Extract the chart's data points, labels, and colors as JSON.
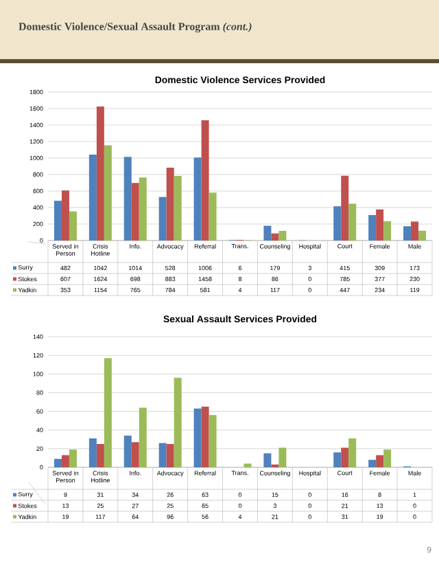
{
  "chart_data": [
    {
      "type": "bar",
      "title": "Domestic Violence Services Provided",
      "annotations": [
        "Domestic Violence/Sexual Assault Program *(cont.)*"
      ],
      "categories": [
        "Served in Person",
        "Crisis Hotline",
        "Info.",
        "Advocacy",
        "Referral",
        "Trans.",
        "Counseling",
        "Hospital",
        "Court",
        "Female",
        "Male"
      ],
      "series": [
        {
          "name": "Surry",
          "color": "#4f81bd",
          "values": [
            482,
            1042,
            1014,
            528,
            1006,
            6,
            179,
            3,
            415,
            309,
            173
          ]
        },
        {
          "name": "Stokes",
          "color": "#c0504d",
          "values": [
            607,
            1624,
            698,
            883,
            1458,
            8,
            86,
            0,
            785,
            377,
            230
          ]
        },
        {
          "name": "Yadkin",
          "color": "#9bbb59",
          "values": [
            353,
            1154,
            765,
            784,
            581,
            4,
            117,
            0,
            447,
            234,
            119
          ]
        }
      ],
      "ylim": [
        0,
        1800
      ],
      "yticks": [
        0,
        200,
        400,
        600,
        800,
        1000,
        1200,
        1400,
        1600,
        1800
      ],
      "grid": "y",
      "legend": "bottom",
      "data_labels": true
    },
    {
      "type": "bar",
      "title": "Sexual Assault Services Provided",
      "annotations": [
        "9"
      ],
      "categories": [
        "Served in Person",
        "Crisis Hotline",
        "Info.",
        "Advocacy",
        "Referral",
        "Trans.",
        "Counseling",
        "Hospital",
        "Court",
        "Female",
        "Male"
      ],
      "series": [
        {
          "name": "Surry",
          "color": "#4f81bd",
          "values": [
            9,
            31,
            34,
            26,
            63,
            0,
            15,
            0,
            16,
            8,
            1
          ]
        },
        {
          "name": "Stokes",
          "color": "#c0504d",
          "values": [
            13,
            25,
            27,
            25,
            65,
            0,
            3,
            0,
            21,
            13,
            0
          ]
        },
        {
          "name": "Yadkin",
          "color": "#9bbb59",
          "values": [
            19,
            117,
            64,
            96,
            56,
            4,
            21,
            0,
            31,
            19,
            0
          ]
        }
      ],
      "ylim": [
        0,
        140
      ],
      "yticks": [
        0,
        20,
        40,
        60,
        80,
        100,
        120,
        140
      ],
      "grid": "y",
      "legend": "bottom",
      "data_labels": true
    }
  ]
}
